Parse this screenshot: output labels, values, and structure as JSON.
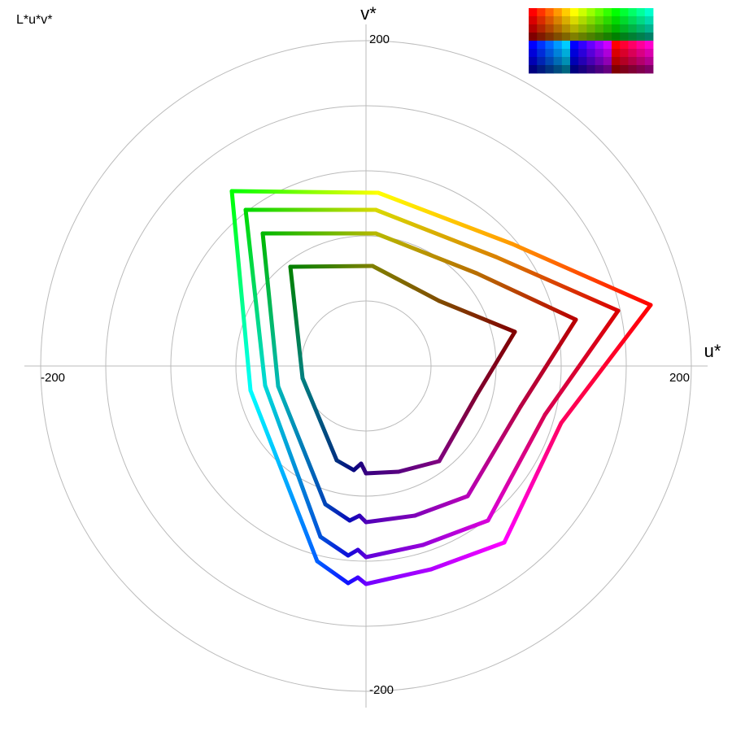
{
  "chart_data": {
    "type": "polar-gamut",
    "title": "L*u*v*",
    "xlabel": "u*",
    "ylabel": "v*",
    "xlim": [
      -210,
      210
    ],
    "ylim": [
      -210,
      210
    ],
    "xticks": [
      -200,
      200
    ],
    "yticks": [
      -200,
      200
    ],
    "grid_radii": [
      40,
      80,
      120,
      160,
      200
    ],
    "grid": true,
    "series": [
      {
        "u": [
          175,
          120,
          85,
          40,
          0,
          -5,
          -11,
          -30,
          -71,
          -82.5,
          7.5,
          90
        ],
        "v": [
          37.5,
          -35,
          -108.5,
          -125,
          -134,
          -130,
          -133.5,
          -120,
          -15,
          107.5,
          106.5,
          75
        ],
        "colors": [
          "#ff0000",
          "#ff0060",
          "#ff00ff",
          "#b000ff",
          "#7000ff",
          "#4000ff",
          "#1010ff",
          "#0060ff",
          "#00ffff",
          "#00ff00",
          "#ffff00",
          "#ff9900"
        ]
      },
      {
        "u": [
          155,
          110,
          75,
          35,
          0,
          -5,
          -11,
          -28,
          -62,
          -74,
          6,
          80
        ],
        "v": [
          34,
          -30,
          -95,
          -110,
          -117.5,
          -113,
          -116.5,
          -105,
          -12,
          96,
          96,
          67
        ],
        "colors": [
          "#d90000",
          "#d90052",
          "#d900d9",
          "#9600d9",
          "#5f00d9",
          "#3600d9",
          "#0e0ed9",
          "#0052d9",
          "#00d9d9",
          "#00d900",
          "#d9d900",
          "#d98200"
        ]
      },
      {
        "u": [
          129,
          95,
          62.5,
          30,
          0,
          -4,
          -10,
          -25,
          -54,
          -63.5,
          6,
          68
        ],
        "v": [
          28.5,
          -25,
          -80,
          -92,
          -96,
          -92,
          -95,
          -85,
          -12.5,
          81.5,
          81.5,
          57
        ],
        "colors": [
          "#b80000",
          "#b80045",
          "#b800b8",
          "#7f00b8",
          "#5000b8",
          "#2e00b8",
          "#0b0bb8",
          "#0045b8",
          "#00b8b8",
          "#00b800",
          "#b8b800",
          "#b86e00"
        ]
      },
      {
        "u": [
          91.5,
          68,
          45,
          20,
          0,
          -3,
          -7.5,
          -18,
          -39,
          -46.5,
          4,
          45
        ],
        "v": [
          21,
          -18,
          -58.5,
          -65,
          -66,
          -60,
          -64,
          -58,
          -7.5,
          61,
          61.5,
          40
        ],
        "colors": [
          "#800000",
          "#800030",
          "#800080",
          "#580080",
          "#380080",
          "#200080",
          "#080880",
          "#003080",
          "#008080",
          "#008000",
          "#808000",
          "#804d00"
        ]
      }
    ]
  }
}
